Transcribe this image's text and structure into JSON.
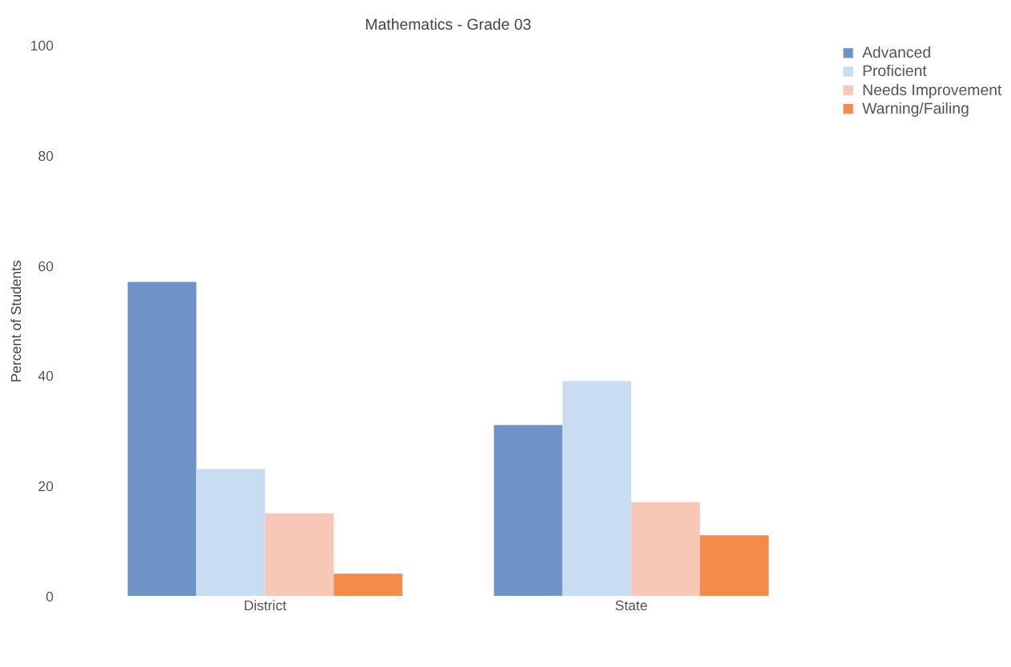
{
  "chart_data": {
    "type": "bar",
    "title": "Mathematics - Grade 03",
    "ylabel": "Percent of Students",
    "categories": [
      "District",
      "State"
    ],
    "series": [
      {
        "name": "Advanced",
        "color": "#6f93c6",
        "values": [
          57,
          31
        ]
      },
      {
        "name": "Proficient",
        "color": "#c8dcf2",
        "values": [
          23,
          39
        ]
      },
      {
        "name": "Needs Improvement",
        "color": "#f9c7b5",
        "values": [
          15,
          17
        ]
      },
      {
        "name": "Warning/Failing",
        "color": "#f58b4b",
        "values": [
          4,
          11
        ]
      }
    ],
    "ylim": [
      0,
      100
    ],
    "yticks": [
      0,
      20,
      40,
      60,
      80,
      100
    ],
    "grid": false,
    "legend": "right"
  }
}
